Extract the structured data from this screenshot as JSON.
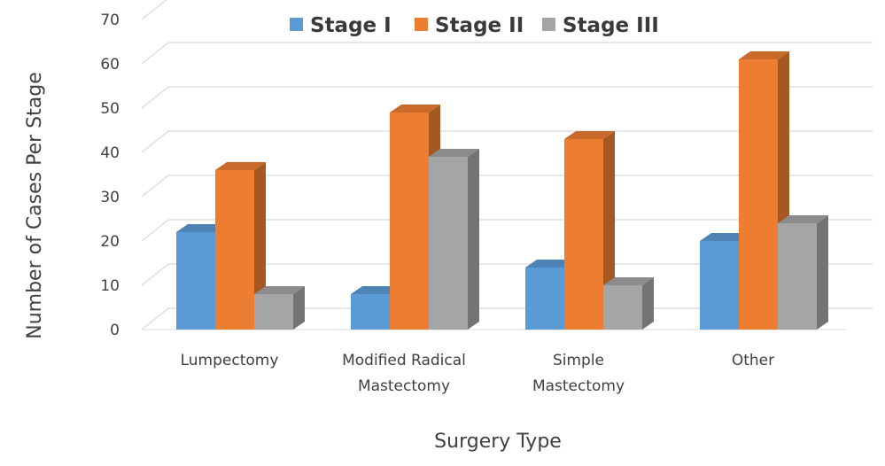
{
  "chart_data": {
    "type": "bar",
    "style": "3d-clustered-column",
    "title": "",
    "xlabel": "Surgery Type",
    "ylabel": "Number of Cases Per Stage",
    "ylim": [
      0,
      70
    ],
    "yticks": [
      0,
      10,
      20,
      30,
      40,
      50,
      60,
      70
    ],
    "grid": true,
    "legend_position": "top",
    "categories": [
      [
        "Lumpectomy"
      ],
      [
        "Modified Radical",
        "Mastectomy"
      ],
      [
        "Simple",
        "Mastectomy"
      ],
      [
        "Other"
      ]
    ],
    "series": [
      {
        "name": "Stage I",
        "color": "#5B9BD5",
        "values": [
          22,
          8,
          14,
          20
        ]
      },
      {
        "name": "Stage II",
        "color": "#ED7D31",
        "values": [
          36,
          49,
          43,
          61
        ]
      },
      {
        "name": "Stage III",
        "color": "#A5A5A5",
        "values": [
          8,
          39,
          10,
          24
        ]
      }
    ]
  }
}
